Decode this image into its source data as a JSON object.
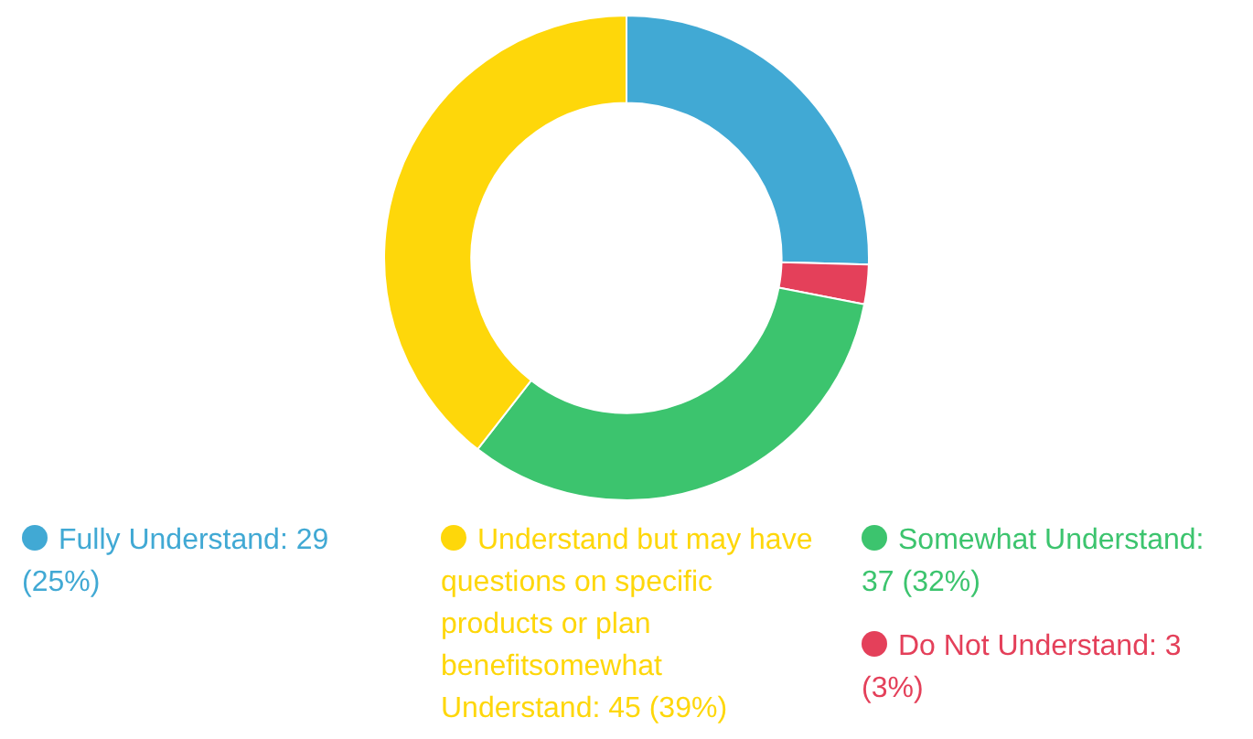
{
  "chart_data": {
    "type": "donut",
    "categories": [
      "Fully Understand",
      "Do Not Understand",
      "Somewhat Understand",
      "Understand but may have questions on specific products or plan benefitsomewhat Understand"
    ],
    "values": [
      29,
      3,
      37,
      45
    ],
    "value_labels": [
      ": 29 (25%)",
      ": 3 (3%)",
      ": 37 (32%)",
      ": 45 (39%)"
    ],
    "colors": [
      "#41a9d4",
      "#e4405a",
      "#3cc46e",
      "#fed70a"
    ],
    "legend": "bottom"
  }
}
